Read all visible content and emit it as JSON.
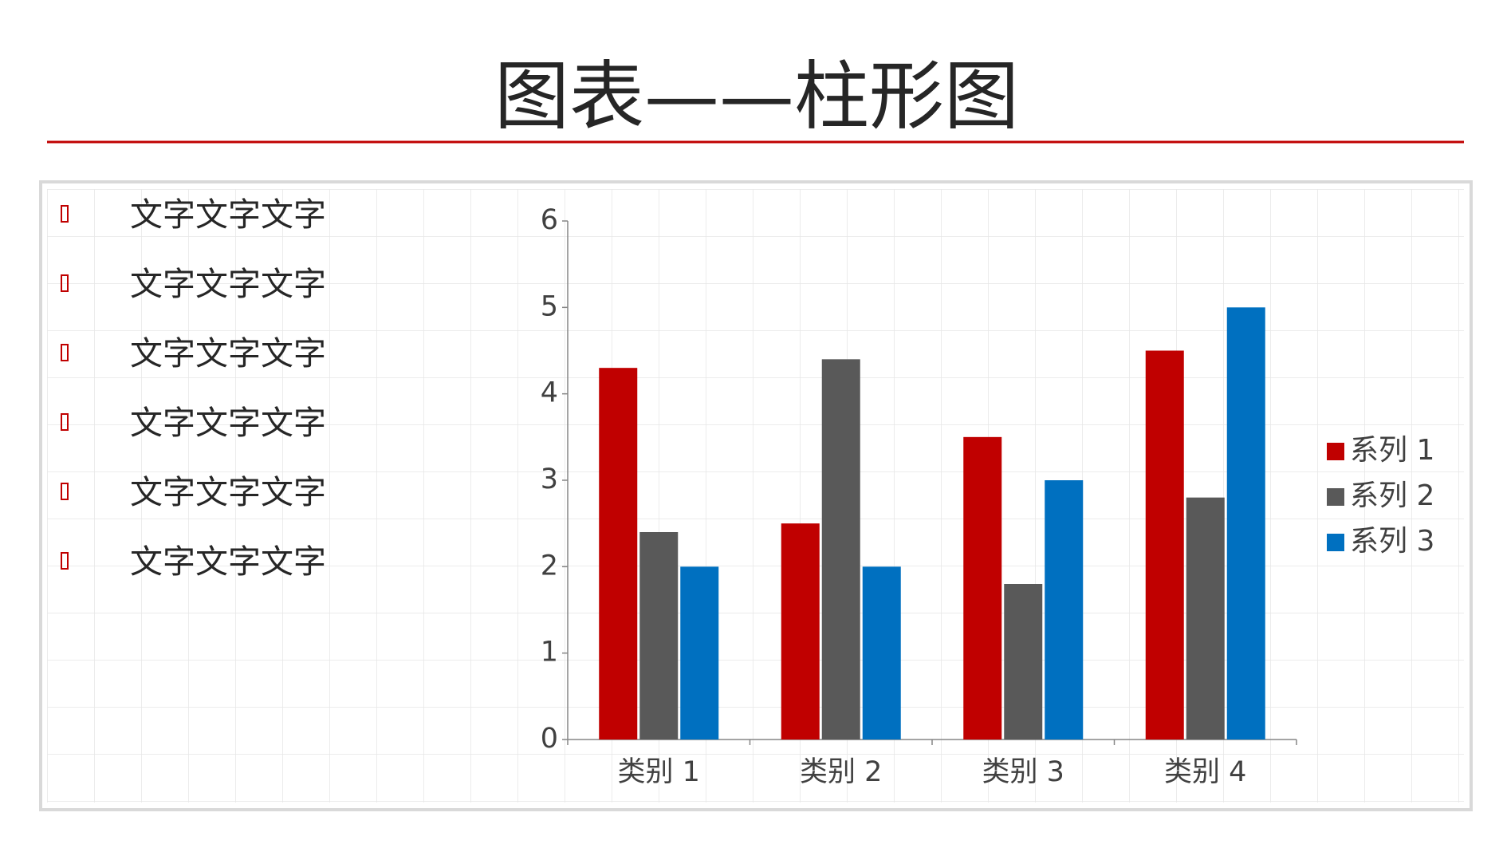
{
  "header": {
    "title": "图表——柱形图"
  },
  "bullets": [
    "文字文字文字",
    "文字文字文字",
    "文字文字文字",
    "文字文字文字",
    "文字文字文字",
    "文字文字文字"
  ],
  "chart_data": {
    "type": "bar",
    "categories": [
      "类别 1",
      "类别 2",
      "类别 3",
      "类别 4"
    ],
    "series": [
      {
        "name": "系列 1",
        "color": "#c00000",
        "values": [
          4.3,
          2.5,
          3.5,
          4.5
        ]
      },
      {
        "name": "系列 2",
        "color": "#595959",
        "values": [
          2.4,
          4.4,
          1.8,
          2.8
        ]
      },
      {
        "name": "系列 3",
        "color": "#0070c0",
        "values": [
          2,
          2,
          3,
          5
        ]
      }
    ],
    "ylim": [
      0,
      6
    ],
    "yticks": [
      0,
      1,
      2,
      3,
      4,
      5,
      6
    ],
    "legend": "right"
  }
}
